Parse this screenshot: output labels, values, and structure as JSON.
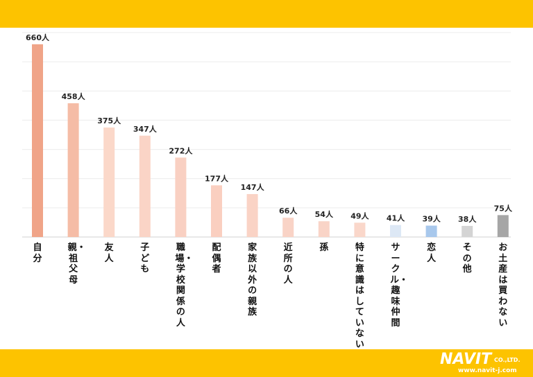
{
  "brand": {
    "logo_main": "NAVIT",
    "logo_suffix": "CO.,LTD.",
    "logo_url": "www.navit-j.com"
  },
  "chart_data": {
    "type": "bar",
    "title": "",
    "xlabel": "",
    "ylabel": "",
    "ylim": [
      0,
      700
    ],
    "grid": true,
    "legend": "none",
    "unit": "人",
    "categories": [
      "自分",
      "親・祖父母",
      "友人",
      "子ども",
      "職場・学校関係の人",
      "配偶者",
      "家族以外の親族",
      "近所の人",
      "孫",
      "特に意識はしていない",
      "サークル・趣味仲間",
      "恋人",
      "その他",
      "お土産は買わない"
    ],
    "values": [
      660,
      458,
      375,
      347,
      272,
      177,
      147,
      66,
      54,
      49,
      41,
      39,
      38,
      75
    ],
    "value_labels": [
      "660人",
      "458人",
      "375人",
      "347人",
      "272人",
      "177人",
      "147人",
      "66人",
      "54人",
      "49人",
      "41人",
      "39人",
      "38人",
      "75人"
    ],
    "colors": [
      "#f0a488",
      "#f5bca6",
      "#fbd8c9",
      "#fad4c6",
      "#f9d0c2",
      "#facfc0",
      "#fad3c5",
      "#f9d3c6",
      "#f9d4c7",
      "#fad7ca",
      "#dde8f5",
      "#a8c8ec",
      "#d4d4d4",
      "#a6a6a6"
    ]
  }
}
